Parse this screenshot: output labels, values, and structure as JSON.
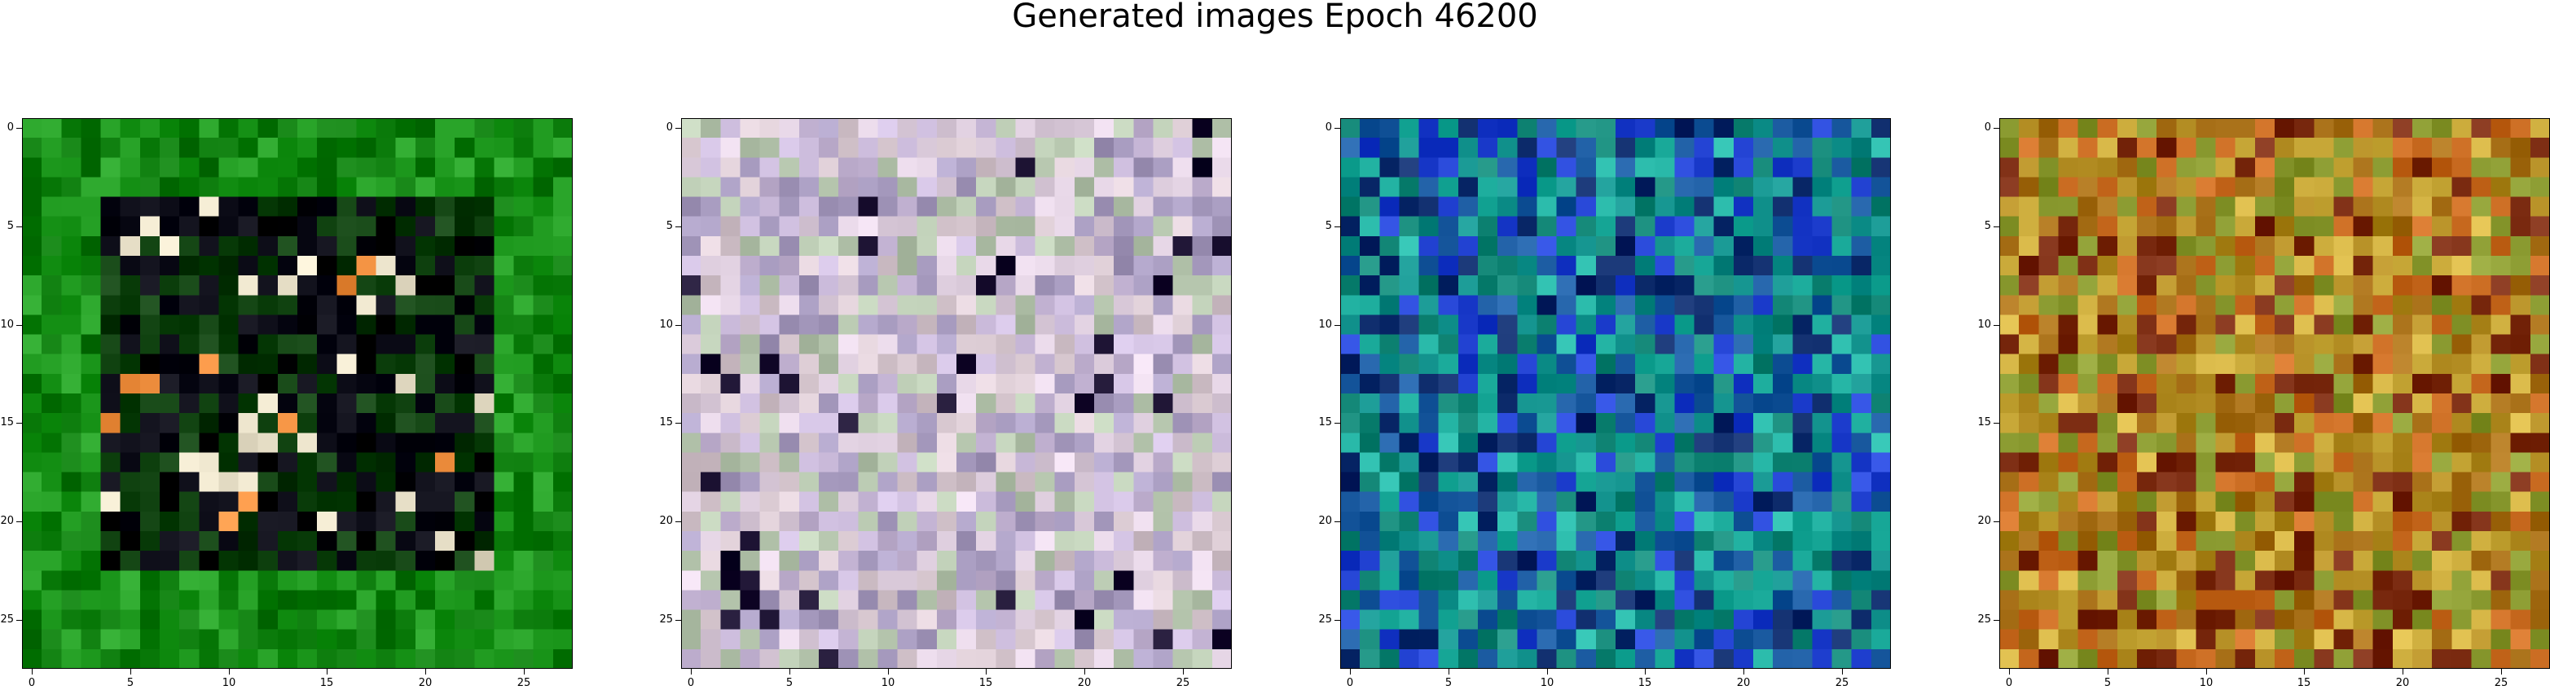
{
  "figure": {
    "title": "Generated images Epoch 46200"
  },
  "chart_data": [
    {
      "type": "heatmap",
      "title": "",
      "xlabel": "",
      "ylabel": "",
      "grid_size": 28,
      "xlim": [
        -0.5,
        27.5
      ],
      "ylim": [
        27.5,
        -0.5
      ],
      "xticks": [
        0,
        5,
        10,
        15,
        20,
        25
      ],
      "yticks": [
        0,
        5,
        10,
        15,
        20,
        25
      ],
      "xtick_labels": [
        "0",
        "5",
        "10",
        "15",
        "20",
        "25"
      ],
      "ytick_labels": [
        "0",
        "5",
        "10",
        "15",
        "20",
        "25"
      ],
      "dominant_palette": [
        "#0a7a0a",
        "#1f9a1f",
        "#0b3d0b",
        "#050510",
        "#e8e0c8",
        "#f09040"
      ],
      "grid": false
    },
    {
      "type": "heatmap",
      "title": "",
      "xlabel": "",
      "ylabel": "",
      "grid_size": 28,
      "xlim": [
        -0.5,
        27.5
      ],
      "ylim": [
        27.5,
        -0.5
      ],
      "xticks": [
        0,
        5,
        10,
        15,
        20,
        25
      ],
      "yticks": [
        0,
        5,
        10,
        15,
        20,
        25
      ],
      "xtick_labels": [
        "0",
        "5",
        "10",
        "15",
        "20",
        "25"
      ],
      "ytick_labels": [
        "0",
        "5",
        "10",
        "15",
        "20",
        "25"
      ],
      "dominant_palette": [
        "#c8b8d8",
        "#d8c8d0",
        "#b8c8b0",
        "#a89cc0",
        "#e0d0e0",
        "#1a1030"
      ],
      "grid": false
    },
    {
      "type": "heatmap",
      "title": "",
      "xlabel": "",
      "ylabel": "",
      "grid_size": 28,
      "xlim": [
        -0.5,
        27.5
      ],
      "ylim": [
        27.5,
        -0.5
      ],
      "xticks": [
        0,
        5,
        10,
        15,
        20,
        25
      ],
      "yticks": [
        0,
        5,
        10,
        15,
        20,
        25
      ],
      "xtick_labels": [
        "0",
        "5",
        "10",
        "15",
        "20",
        "25"
      ],
      "ytick_labels": [
        "0",
        "5",
        "10",
        "15",
        "20",
        "25"
      ],
      "dominant_palette": [
        "#0f8f8a",
        "#148878",
        "#1a5aa0",
        "#0c2a6a",
        "#20b0a0",
        "#2040d0"
      ],
      "grid": false
    },
    {
      "type": "heatmap",
      "title": "",
      "xlabel": "",
      "ylabel": "",
      "grid_size": 28,
      "xlim": [
        -0.5,
        27.5
      ],
      "ylim": [
        27.5,
        -0.5
      ],
      "xticks": [
        0,
        5,
        10,
        15,
        20,
        25
      ],
      "yticks": [
        0,
        5,
        10,
        15,
        20,
        25
      ],
      "xtick_labels": [
        "0",
        "5",
        "10",
        "15",
        "20",
        "25"
      ],
      "ytick_labels": [
        "0",
        "5",
        "10",
        "15",
        "20",
        "25"
      ],
      "dominant_palette": [
        "#b08a20",
        "#a87018",
        "#8a9a30",
        "#7a2a10",
        "#d0b040",
        "#c86a20"
      ],
      "grid": false
    }
  ]
}
